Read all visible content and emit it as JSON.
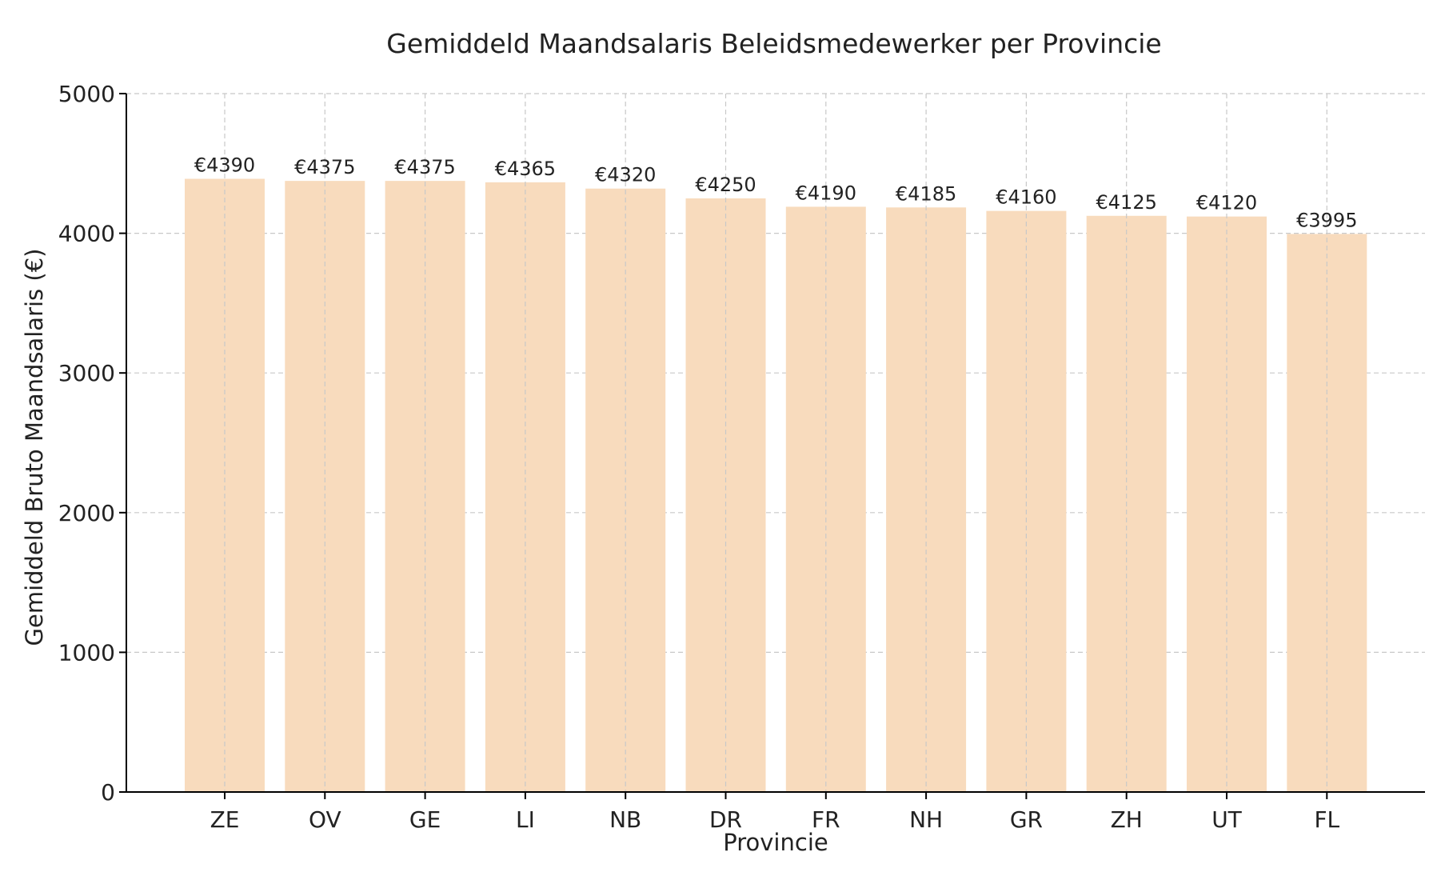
{
  "chart_data": {
    "type": "bar",
    "title": "Gemiddeld Maandsalaris Beleidsmedewerker per Provincie",
    "xlabel": "Provincie",
    "ylabel": "Gemiddeld Bruto Maandsalaris (€)",
    "categories": [
      "ZE",
      "OV",
      "GE",
      "LI",
      "NB",
      "DR",
      "FR",
      "NH",
      "GR",
      "ZH",
      "UT",
      "FL"
    ],
    "values": [
      4390,
      4375,
      4375,
      4365,
      4320,
      4250,
      4190,
      4185,
      4160,
      4125,
      4120,
      3995
    ],
    "value_labels": [
      "€4390",
      "€4375",
      "€4375",
      "€4365",
      "€4320",
      "€4250",
      "€4190",
      "€4185",
      "€4160",
      "€4125",
      "€4120",
      "€3995"
    ],
    "ylim": [
      0,
      5000
    ],
    "yticks": [
      0,
      1000,
      2000,
      3000,
      4000,
      5000
    ],
    "grid": true,
    "bar_color": "#f8dbbd"
  }
}
